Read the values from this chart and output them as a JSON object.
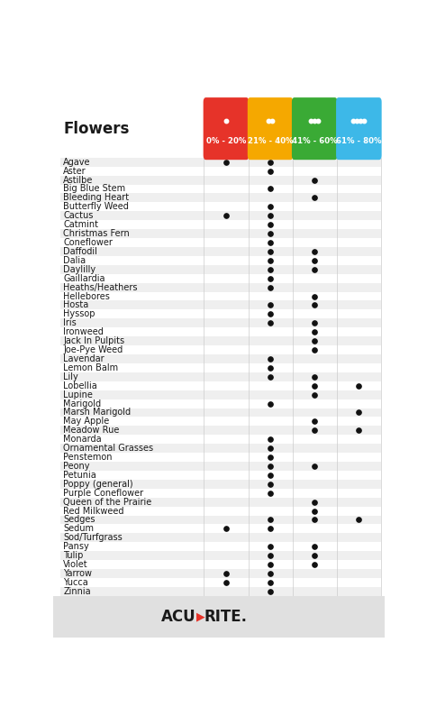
{
  "title": "Flowers",
  "columns": [
    "0% - 20%",
    "21% - 40%",
    "41% - 60%",
    "61% - 80%"
  ],
  "col_colors": [
    "#e63329",
    "#f5a800",
    "#3aaa35",
    "#3db8e8"
  ],
  "flowers": [
    "Agave",
    "Aster",
    "Astilbe",
    "Big Blue Stem",
    "Bleeding Heart",
    "Butterfly Weed",
    "Cactus",
    "Catmint",
    "Christmas Fern",
    "Coneflower",
    "Daffodil",
    "Dalia",
    "Daylilly",
    "Gaillardia",
    "Heaths/Heathers",
    "Hellebores",
    "Hosta",
    "Hyssop",
    "Iris",
    "Ironweed",
    "Jack In Pulpits",
    "Joe-Pye Weed",
    "Lavendar",
    "Lemon Balm",
    "Lily",
    "Lobellia",
    "Lupine",
    "Marigold",
    "Marsh Marigold",
    "May Apple",
    "Meadow Rue",
    "Monarda",
    "Ornamental Grasses",
    "Penstemon",
    "Peony",
    "Petunia",
    "Poppy (general)",
    "Purple Coneflower",
    "Queen of the Prairie",
    "Red Milkweed",
    "Sedges",
    "Sedum",
    "Sod/Turfgrass",
    "Pansy",
    "Tulip",
    "Violet",
    "Yarrow",
    "Yucca",
    "Zinnia"
  ],
  "dots": {
    "Agave": [
      1,
      1,
      0,
      0
    ],
    "Aster": [
      0,
      1,
      0,
      0
    ],
    "Astilbe": [
      0,
      0,
      1,
      0
    ],
    "Big Blue Stem": [
      0,
      1,
      0,
      0
    ],
    "Bleeding Heart": [
      0,
      0,
      1,
      0
    ],
    "Butterfly Weed": [
      0,
      1,
      0,
      0
    ],
    "Cactus": [
      1,
      1,
      0,
      0
    ],
    "Catmint": [
      0,
      1,
      0,
      0
    ],
    "Christmas Fern": [
      0,
      1,
      0,
      0
    ],
    "Coneflower": [
      0,
      1,
      0,
      0
    ],
    "Daffodil": [
      0,
      1,
      1,
      0
    ],
    "Dalia": [
      0,
      1,
      1,
      0
    ],
    "Daylilly": [
      0,
      1,
      1,
      0
    ],
    "Gaillardia": [
      0,
      1,
      0,
      0
    ],
    "Heaths/Heathers": [
      0,
      1,
      0,
      0
    ],
    "Hellebores": [
      0,
      0,
      1,
      0
    ],
    "Hosta": [
      0,
      1,
      1,
      0
    ],
    "Hyssop": [
      0,
      1,
      0,
      0
    ],
    "Iris": [
      0,
      1,
      1,
      0
    ],
    "Ironweed": [
      0,
      0,
      1,
      0
    ],
    "Jack In Pulpits": [
      0,
      0,
      1,
      0
    ],
    "Joe-Pye Weed": [
      0,
      0,
      1,
      0
    ],
    "Lavendar": [
      0,
      1,
      0,
      0
    ],
    "Lemon Balm": [
      0,
      1,
      0,
      0
    ],
    "Lily": [
      0,
      1,
      1,
      0
    ],
    "Lobellia": [
      0,
      0,
      1,
      1
    ],
    "Lupine": [
      0,
      0,
      1,
      0
    ],
    "Marigold": [
      0,
      1,
      0,
      0
    ],
    "Marsh Marigold": [
      0,
      0,
      0,
      1
    ],
    "May Apple": [
      0,
      0,
      1,
      0
    ],
    "Meadow Rue": [
      0,
      0,
      1,
      1
    ],
    "Monarda": [
      0,
      1,
      0,
      0
    ],
    "Ornamental Grasses": [
      0,
      1,
      0,
      0
    ],
    "Penstemon": [
      0,
      1,
      0,
      0
    ],
    "Peony": [
      0,
      1,
      1,
      0
    ],
    "Petunia": [
      0,
      1,
      0,
      0
    ],
    "Poppy (general)": [
      0,
      1,
      0,
      0
    ],
    "Purple Coneflower": [
      0,
      1,
      0,
      0
    ],
    "Queen of the Prairie": [
      0,
      0,
      1,
      0
    ],
    "Red Milkweed": [
      0,
      0,
      1,
      0
    ],
    "Sedges": [
      0,
      1,
      1,
      1
    ],
    "Sedum": [
      1,
      1,
      0,
      0
    ],
    "Sod/Turfgrass": [
      0,
      0,
      0,
      0
    ],
    "Pansy": [
      0,
      1,
      1,
      0
    ],
    "Tulip": [
      0,
      1,
      1,
      0
    ],
    "Violet": [
      0,
      1,
      1,
      0
    ],
    "Yarrow": [
      1,
      1,
      0,
      0
    ],
    "Yucca": [
      1,
      1,
      0,
      0
    ],
    "Zinnia": [
      0,
      1,
      0,
      0
    ]
  },
  "bg_color": "#ffffff",
  "row_alt_color": "#efefef",
  "row_color": "#ffffff",
  "footer_bg": "#e0e0e0",
  "grid_color": "#cccccc"
}
